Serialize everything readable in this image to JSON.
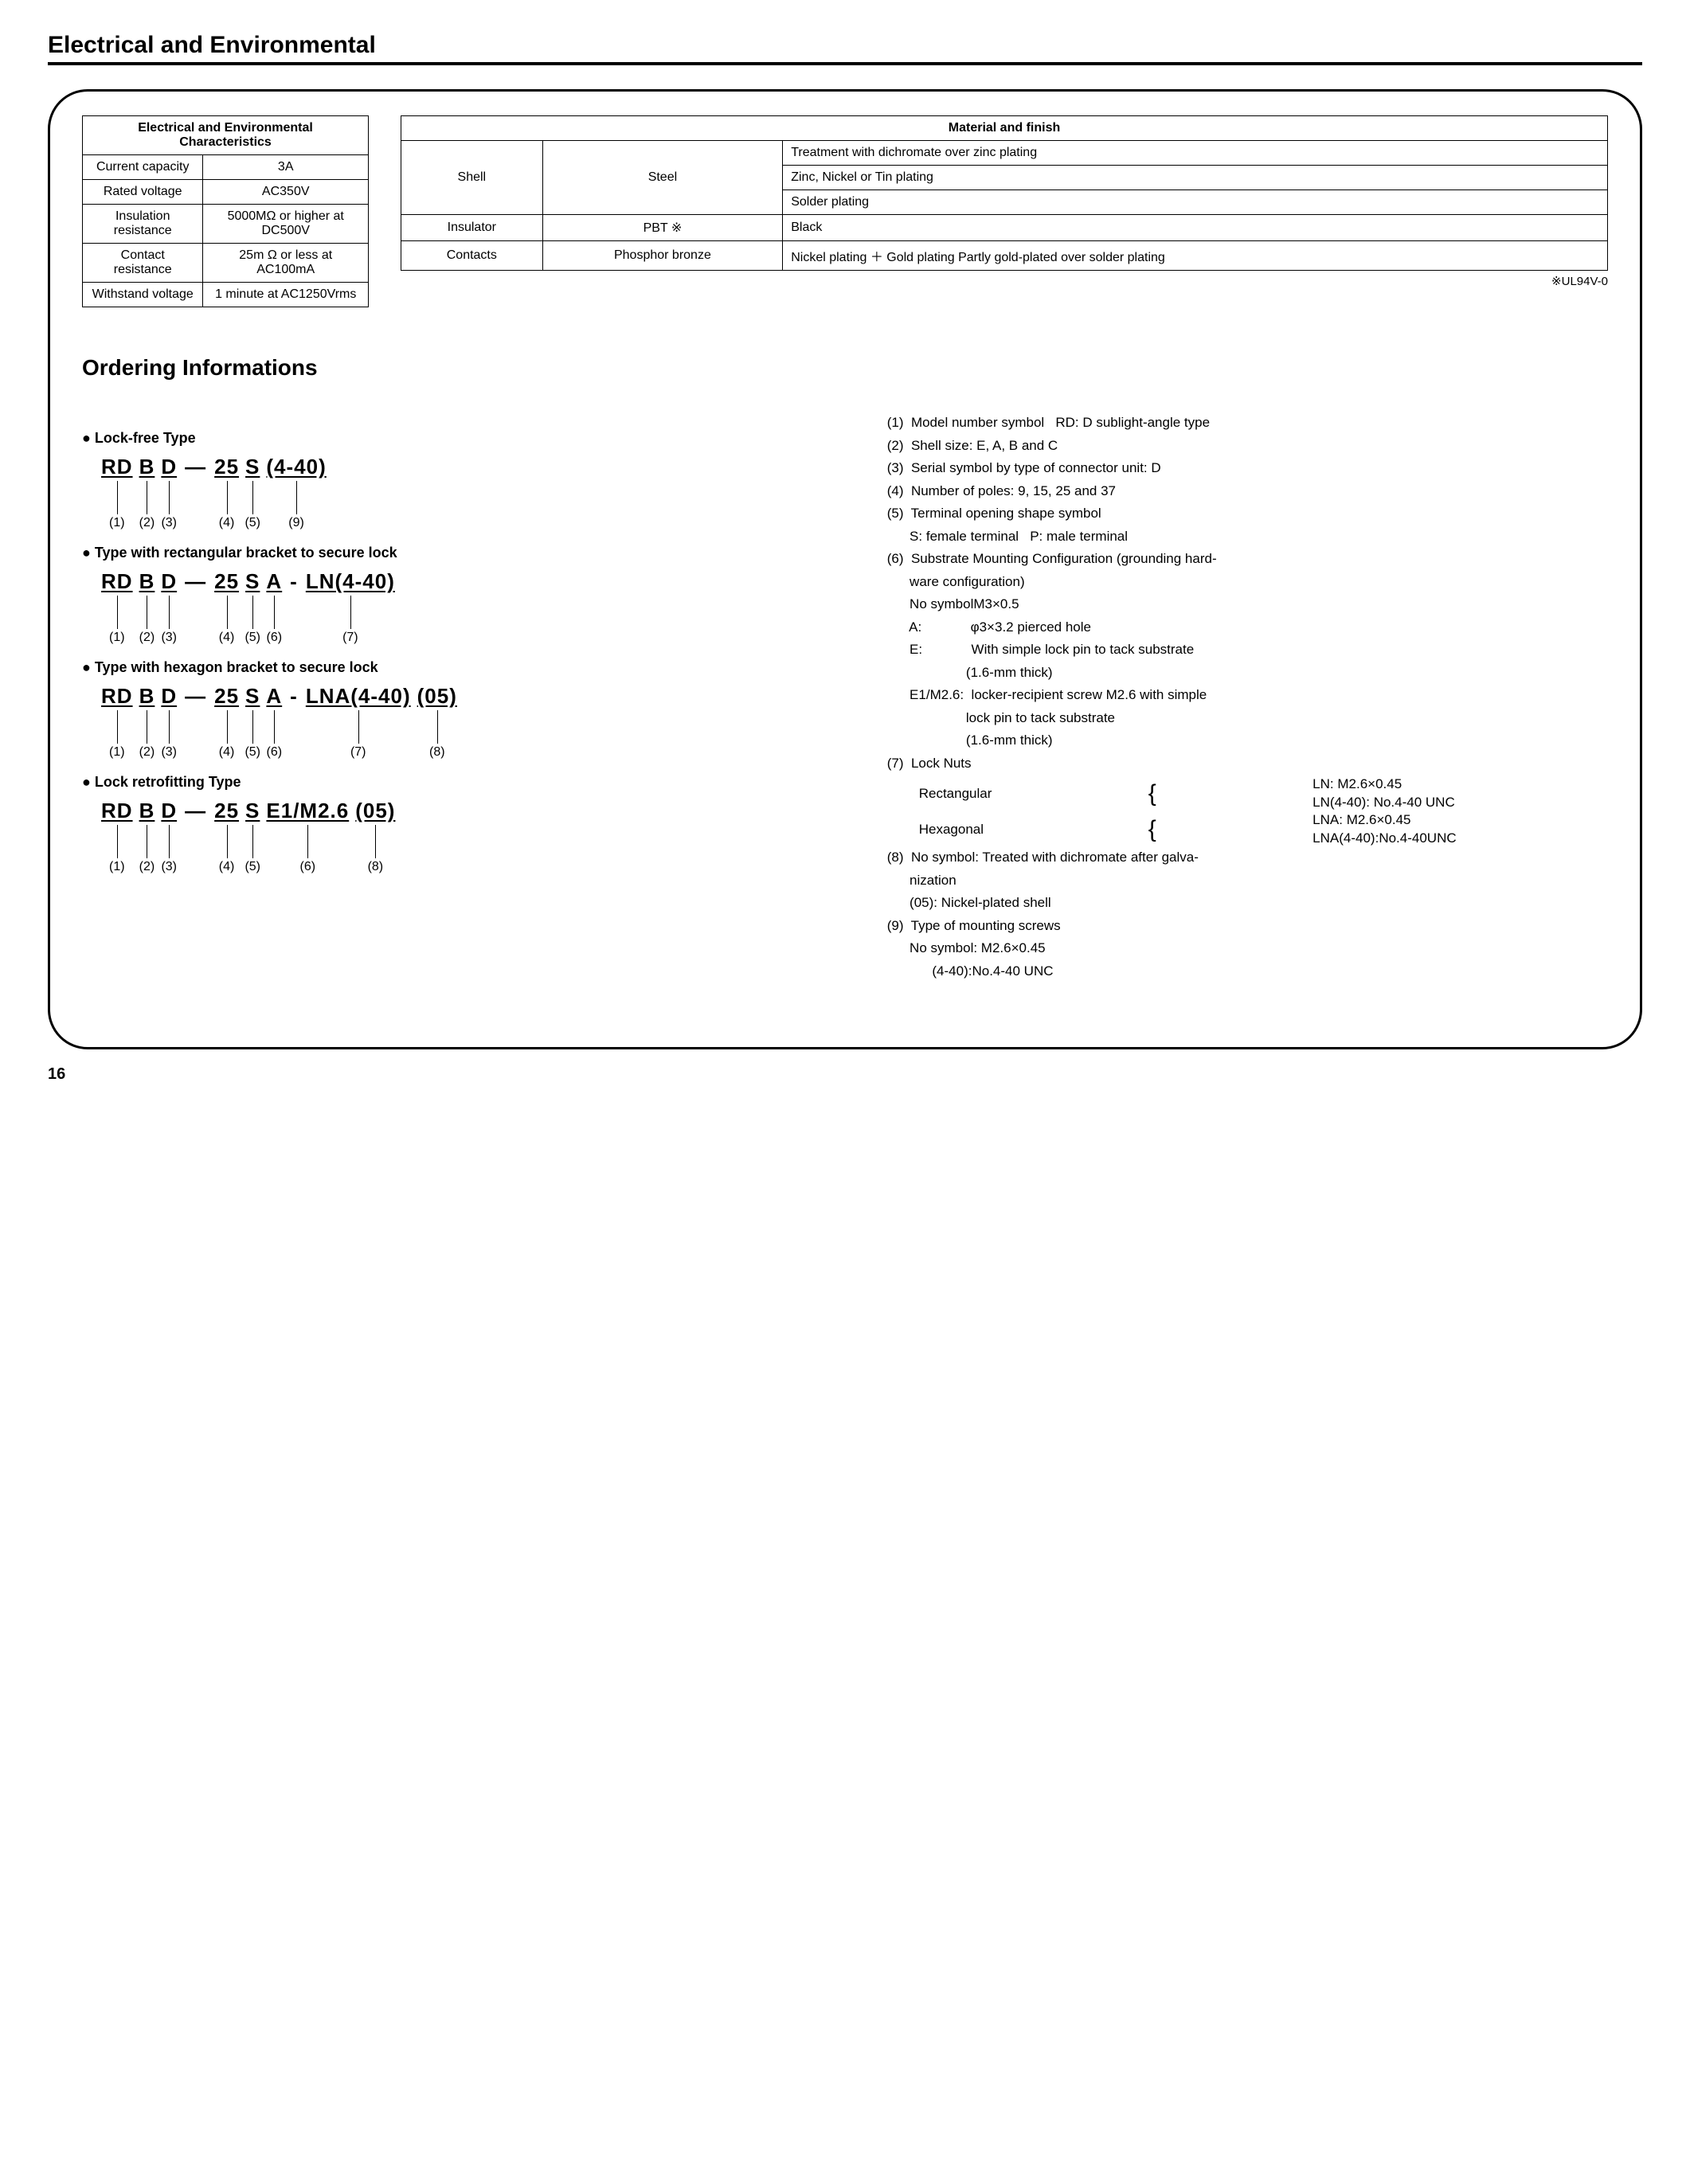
{
  "page": {
    "title": "Electrical and Environmental",
    "page_number": "16"
  },
  "elec_table": {
    "header": "Electrical and Environmental Characteristics",
    "rows": [
      {
        "label": "Current capacity",
        "value": "3A"
      },
      {
        "label": "Rated voltage",
        "value": "AC350V"
      },
      {
        "label": "Insulation resistance",
        "value": "5000MΩ or higher at DC500V"
      },
      {
        "label": "Contact resistance",
        "value": "25m Ω or less at AC100mA"
      },
      {
        "label": "Withstand voltage",
        "value": "1 minute at AC1250Vrms"
      }
    ]
  },
  "material_table": {
    "header": "Material and finish",
    "rows": [
      {
        "c1": "Shell",
        "c2": "Steel",
        "c3": [
          "Treatment with dichromate over zinc plating",
          "Zinc, Nickel or Tin plating",
          "Solder plating"
        ],
        "rowspan1": 3,
        "rowspan2": 3
      },
      {
        "c1": "Insulator",
        "c2": "PBT ※",
        "c3": [
          "Black"
        ]
      },
      {
        "c1": "Contacts",
        "c2": "Phosphor bronze",
        "c3": [
          "Nickel plating ＋ Gold plating Partly gold-plated over solder plating"
        ]
      }
    ],
    "footnote": "※UL94V-0"
  },
  "ordering": {
    "title": "Ordering Informations",
    "types": [
      {
        "title": "Lock-free Type",
        "segments": [
          "RD",
          "B",
          "D",
          "—",
          "25",
          "S",
          "(4-40)"
        ],
        "indices": [
          "(1)",
          "(2)",
          "(3)",
          "",
          "(4)",
          "(5)",
          "(9)"
        ]
      },
      {
        "title": "Type with rectangular bracket to secure lock",
        "segments": [
          "RD",
          "B",
          "D",
          "—",
          "25",
          "S",
          "A",
          "-",
          "LN(4-40)"
        ],
        "indices": [
          "(1)",
          "(2)",
          "(3)",
          "",
          "(4)",
          "(5)",
          "(6)",
          "",
          "(7)"
        ]
      },
      {
        "title": "Type with hexagon bracket to secure lock",
        "segments": [
          "RD",
          "B",
          "D",
          "—",
          "25",
          "S",
          "A",
          "-",
          "LNA(4-40)",
          "(05)"
        ],
        "indices": [
          "(1)",
          "(2)",
          "(3)",
          "",
          "(4)",
          "(5)",
          "(6)",
          "",
          "(7)",
          "(8)"
        ]
      },
      {
        "title": "Lock retrofitting Type",
        "segments": [
          "RD",
          "B",
          "D",
          "—",
          "25",
          "S",
          "E1/M2.6",
          "(05)"
        ],
        "indices": [
          "(1)",
          "(2)",
          "(3)",
          "",
          "(4)",
          "(5)",
          "(6)",
          "(8)"
        ]
      }
    ],
    "explanations": [
      "(1)  Model number symbol   RD: D sublight-angle type",
      "(2)  Shell size: E, A, B and C",
      "(3)  Serial symbol by type of connector unit: D",
      "(4)  Number of poles: 9, 15, 25 and 37",
      "(5)  Terminal opening shape symbol",
      "      S: female terminal   P: male terminal",
      "(6)  Substrate Mounting Configuration (grounding hard-",
      "      ware configuration)",
      "      No symbolM3×0.5",
      "      A:             φ3×3.2 pierced hole",
      "      E:             With simple lock pin to tack substrate",
      "                     (1.6-mm thick)",
      "      E1/M2.6:  locker-recipient screw M2.6 with simple",
      "                     lock pin to tack substrate",
      "                     (1.6-mm thick)",
      "",
      "(7)  Lock Nuts"
    ],
    "lock_nuts": {
      "rect_label": "Rectangular",
      "rect_vals": "LN: M2.6×0.45\nLN(4-40): No.4-40 UNC",
      "hex_label": "Hexagonal",
      "hex_vals": "LNA: M2.6×0.45\nLNA(4-40):No.4-40UNC"
    },
    "explanations2": [
      "(8)  No symbol: Treated with dichromate after galva-",
      "      nization",
      "      (05): Nickel-plated shell",
      "(9)  Type of mounting screws",
      "      No symbol: M2.6×0.45",
      "            (4-40):No.4-40 UNC"
    ]
  }
}
